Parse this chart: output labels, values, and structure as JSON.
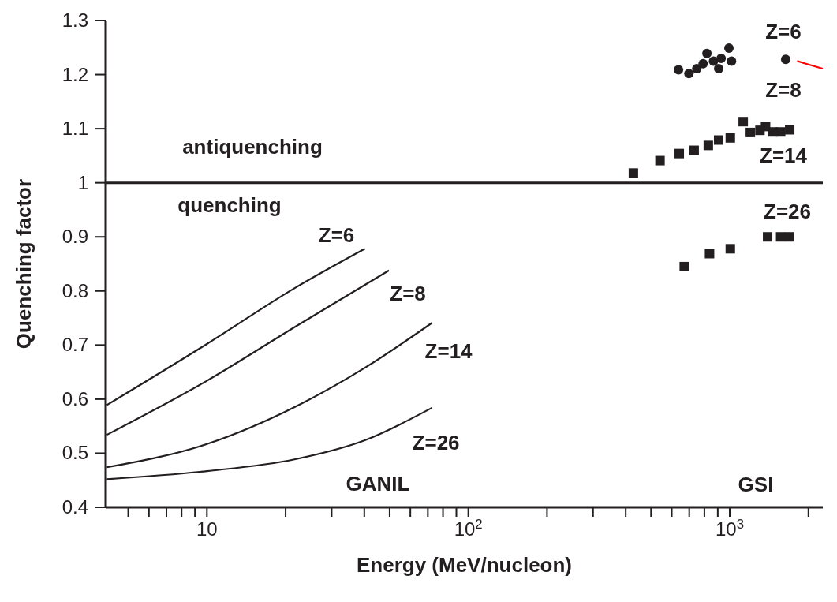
{
  "chart_data": {
    "type": "line",
    "xlabel": "Energy (MeV/nucleon)",
    "ylabel": "Quenching factor",
    "log": "x",
    "xlim": [
      4.1,
      2270
    ],
    "ylim": [
      0.4,
      1.3
    ],
    "xticks": [
      {
        "value": 5,
        "label": null
      },
      {
        "value": 6,
        "label": null
      },
      {
        "value": 7,
        "label": null
      },
      {
        "value": 8,
        "label": null
      },
      {
        "value": 9,
        "label": null
      },
      {
        "value": 10,
        "label": "10"
      },
      {
        "value": 20,
        "label": null
      },
      {
        "value": 30,
        "label": null
      },
      {
        "value": 40,
        "label": null
      },
      {
        "value": 50,
        "label": null
      },
      {
        "value": 60,
        "label": null
      },
      {
        "value": 70,
        "label": null
      },
      {
        "value": 80,
        "label": null
      },
      {
        "value": 90,
        "label": null
      },
      {
        "value": 100,
        "label": "10$^{2}$"
      },
      {
        "value": 200,
        "label": null
      },
      {
        "value": 300,
        "label": null
      },
      {
        "value": 400,
        "label": null
      },
      {
        "value": 500,
        "label": null
      },
      {
        "value": 600,
        "label": null
      },
      {
        "value": 700,
        "label": null
      },
      {
        "value": 800,
        "label": null
      },
      {
        "value": 900,
        "label": null
      },
      {
        "value": 1000,
        "label": "10$^{3}$"
      },
      {
        "value": 2000,
        "label": null
      }
    ],
    "yticks": [
      0.4,
      0.5,
      0.6,
      0.7,
      0.8,
      0.9,
      {
        "value": 1,
        "label": "1"
      },
      1.1,
      1.2,
      1.3
    ],
    "grid": false,
    "legend": false,
    "line_style": "solid",
    "series": [
      {
        "type": "line",
        "name": "Z=6",
        "color": "#231f20",
        "marker": "none",
        "x": [
          4.14,
          10,
          21.8,
          40.2
        ],
        "values": [
          0.589,
          0.702,
          0.806,
          0.878
        ]
      },
      {
        "type": "line",
        "name": "Z=8",
        "color": "#231f20",
        "marker": "none",
        "x": [
          4.14,
          10,
          21.8,
          49.7
        ],
        "values": [
          0.534,
          0.634,
          0.734,
          0.838
        ]
      },
      {
        "type": "line",
        "name": "Z=14",
        "color": "#231f20",
        "marker": "none",
        "x": [
          4.14,
          10,
          21.8,
          40.2,
          72.6
        ],
        "values": [
          0.474,
          0.517,
          0.586,
          0.658,
          0.741
        ]
      },
      {
        "type": "line",
        "name": "Z=26",
        "color": "#231f20",
        "marker": "none",
        "x": [
          4.14,
          10,
          21.8,
          40.2,
          72.6
        ],
        "values": [
          0.452,
          0.467,
          0.489,
          0.524,
          0.584
        ]
      },
      {
        "type": "scatter",
        "color": "#231f20",
        "marker": "circle",
        "x": [
          637,
          698,
          748,
          791,
          818,
          867,
          907,
          927,
          993,
          1016,
          1637
        ],
        "values": [
          1.209,
          1.202,
          1.211,
          1.22,
          1.239,
          1.225,
          1.211,
          1.23,
          1.249,
          1.225,
          1.228
        ]
      },
      {
        "type": "scatter",
        "color": "#231f20",
        "marker": "square",
        "x": [
          428,
          541,
          641,
          731,
          828,
          907,
          1005,
          1126,
          1199,
          1305,
          1371,
          1462,
          1566,
          1696
        ],
        "values": [
          1.018,
          1.041,
          1.054,
          1.06,
          1.069,
          1.079,
          1.083,
          1.113,
          1.093,
          1.097,
          1.104,
          1.094,
          1.094,
          1.098
        ]
      },
      {
        "type": "scatter",
        "color": "#231f20",
        "marker": "square",
        "x": [
          670,
          837,
          1005,
          1396,
          1566,
          1695
        ],
        "values": [
          0.845,
          0.869,
          0.878,
          0.9,
          0.9,
          0.9
        ]
      },
      {
        "type": "line",
        "color": "#ff0000",
        "marker": "none",
        "x": [
          1811,
          2267
        ],
        "values": [
          1.225,
          1.211
        ]
      }
    ],
    "ref_lines": [
      {
        "axis": "y",
        "value": 1,
        "color": "#231f20",
        "line_style": "solid"
      }
    ],
    "annotations": [
      "antiquenching",
      "quenching",
      "Z=6",
      "Z=8",
      "Z=14",
      "Z=26",
      "GANIL",
      "GSI"
    ]
  }
}
